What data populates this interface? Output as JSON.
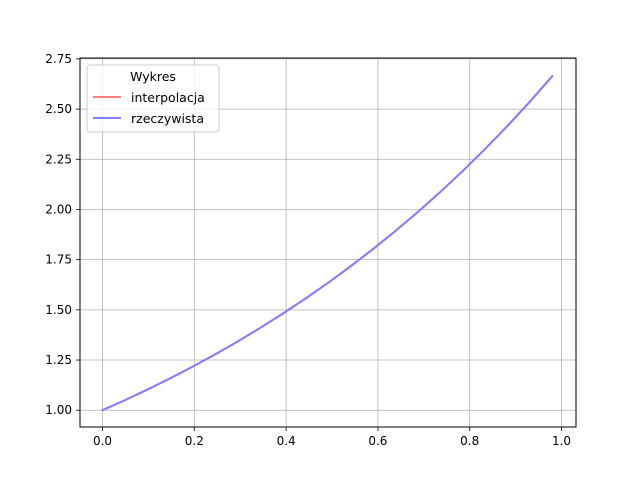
{
  "chart_data": {
    "type": "line",
    "title": "",
    "xlabel": "",
    "ylabel": "",
    "xlim": [
      -0.049,
      1.0315
    ],
    "ylim": [
      0.9164,
      2.7545
    ],
    "grid": true,
    "xticks": [
      0.0,
      0.2,
      0.4,
      0.6,
      0.8,
      1.0
    ],
    "xtick_labels": [
      "0.0",
      "0.2",
      "0.4",
      "0.6",
      "0.8",
      "1.0"
    ],
    "yticks": [
      1.0,
      1.25,
      1.5,
      1.75,
      2.0,
      2.25,
      2.5,
      2.75
    ],
    "ytick_labels": [
      "1.00",
      "1.25",
      "1.50",
      "1.75",
      "2.00",
      "2.25",
      "2.50",
      "2.75"
    ],
    "legend": {
      "title": "Wykres",
      "placement": "upper-left"
    },
    "x": [
      0.0,
      0.049,
      0.098,
      0.147,
      0.196,
      0.245,
      0.294,
      0.343,
      0.392,
      0.441,
      0.49,
      0.539,
      0.588,
      0.637,
      0.686,
      0.735,
      0.784,
      0.833,
      0.882,
      0.931,
      0.98
    ],
    "series": [
      {
        "name": "interpolacja",
        "color": "#ff7f7f",
        "values": [
          1.0,
          1.0502,
          1.103,
          1.1584,
          1.2165,
          1.2776,
          1.3418,
          1.4092,
          1.4799,
          1.5542,
          1.6323,
          1.7142,
          1.8003,
          1.8907,
          1.9857,
          2.0854,
          2.1901,
          2.3001,
          2.4156,
          2.5369,
          2.6645
        ]
      },
      {
        "name": "rzeczywista",
        "color": "#7f7fff",
        "values": [
          1.0,
          1.0502,
          1.103,
          1.1584,
          1.2165,
          1.2776,
          1.3418,
          1.4092,
          1.4799,
          1.5542,
          1.6323,
          1.7142,
          1.8003,
          1.8907,
          1.9857,
          2.0854,
          2.1901,
          2.3001,
          2.4156,
          2.5369,
          2.6645
        ]
      }
    ]
  }
}
